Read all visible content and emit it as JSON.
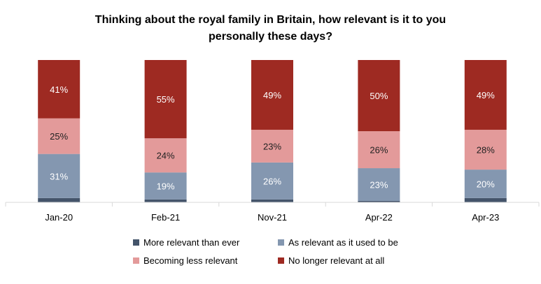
{
  "chart_data": {
    "type": "bar",
    "stacked": true,
    "title_lines": [
      "Thinking about the royal family in Britain, how relevant is it to you",
      "personally these days?"
    ],
    "categories": [
      "Jan-20",
      "Feb-21",
      "Nov-21",
      "Apr-22",
      "Apr-23"
    ],
    "series": [
      {
        "name": "More relevant than ever",
        "color": "#44546a",
        "values": [
          3,
          2,
          2,
          1,
          3
        ]
      },
      {
        "name": "As relevant as it used to be",
        "color": "#8497b0",
        "values": [
          31,
          19,
          26,
          23,
          20
        ]
      },
      {
        "name": "Becoming less relevant",
        "color": "#e39a9a",
        "values": [
          25,
          24,
          23,
          26,
          28
        ]
      },
      {
        "name": "No longer relevant at all",
        "color": "#9e2a22",
        "values": [
          41,
          55,
          49,
          50,
          49
        ]
      }
    ],
    "data_labels": [
      [
        null,
        null,
        null,
        null,
        null
      ],
      [
        "31%",
        "19%",
        "26%",
        "23%",
        "20%"
      ],
      [
        "25%",
        "24%",
        "23%",
        "26%",
        "28%"
      ],
      [
        "41%",
        "55%",
        "49%",
        "50%",
        "49%"
      ]
    ],
    "label_colors": [
      "#ffffff",
      "#ffffff",
      "#222222",
      "#ffffff"
    ],
    "ylim": [
      0,
      100
    ],
    "grid": false,
    "legend_position": "bottom"
  }
}
